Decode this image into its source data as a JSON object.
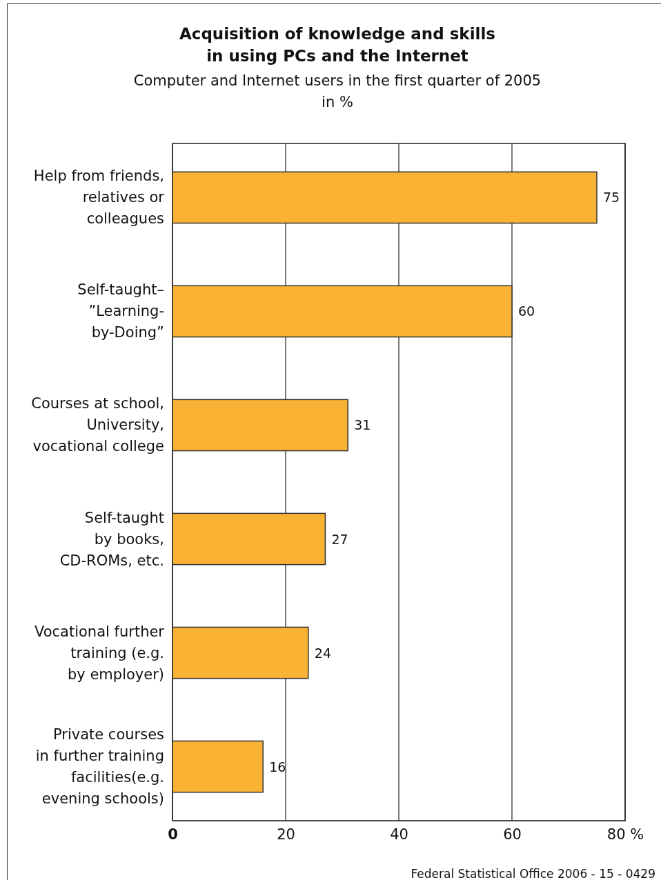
{
  "chart_data": {
    "type": "bar",
    "orientation": "horizontal",
    "title": "Acquisition of knowledge and skills\nin using PCs and the Internet",
    "subtitle": "Computer and Internet users in the first quarter of 2005\nin %",
    "categories": [
      "Help from friends,\nrelatives or\ncolleagues",
      "Self-taught–\n”Learning-\nby-Doing”",
      "Courses at school,\nUniversity,\nvocational college",
      "Self-taught\nby books,\nCD-ROMs, etc.",
      "Vocational further\ntraining (e.g.\nby employer)",
      "Private courses\nin further training\nfacilities(e.g.\nevening schools)"
    ],
    "values": [
      75,
      60,
      31,
      27,
      24,
      16
    ],
    "color": "#f9b233",
    "xlim": [
      0,
      80
    ],
    "xticks": [
      0,
      20,
      40,
      60,
      {
        "value": 80,
        "label": "80 %"
      }
    ],
    "grid": "x",
    "data_labels": true,
    "annotations": [
      "Federal Statistical Office 2006 - 15 - 0429"
    ]
  }
}
